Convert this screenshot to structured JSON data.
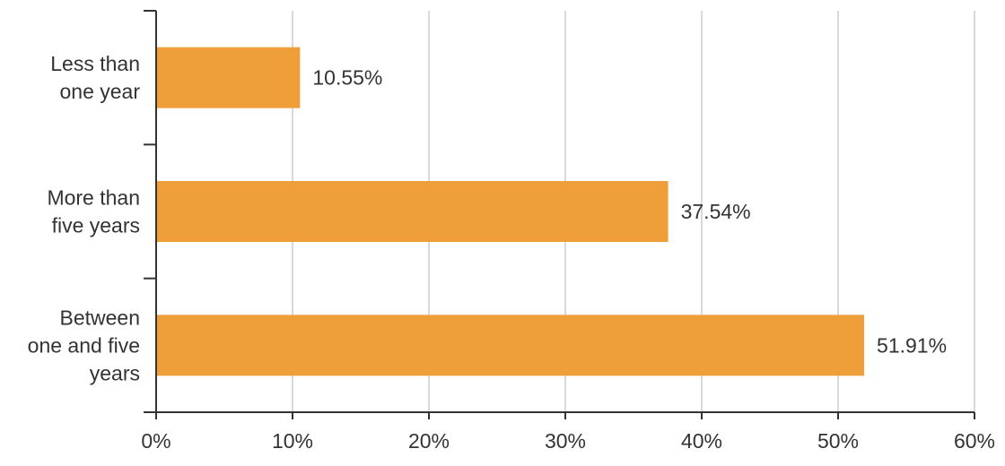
{
  "chart_data": {
    "type": "bar",
    "orientation": "horizontal",
    "categories": [
      [
        "Less than",
        "one year"
      ],
      [
        "More than",
        "five years"
      ],
      [
        "Between",
        "one and five",
        "years"
      ]
    ],
    "values": [
      10.55,
      37.54,
      51.91
    ],
    "value_labels": [
      "10.55%",
      "37.54%",
      "51.91%"
    ],
    "x_ticks": [
      "0%",
      "10%",
      "20%",
      "30%",
      "40%",
      "50%",
      "60%"
    ],
    "x_tick_values": [
      0,
      10,
      20,
      30,
      40,
      50,
      60
    ],
    "xlim": [
      0,
      60
    ],
    "title": "",
    "xlabel": "",
    "ylabel": "",
    "grid": "vertical",
    "bar_color": "#ef9f3a",
    "axis_color": "#333333",
    "grid_color": "#d9d9d9"
  }
}
